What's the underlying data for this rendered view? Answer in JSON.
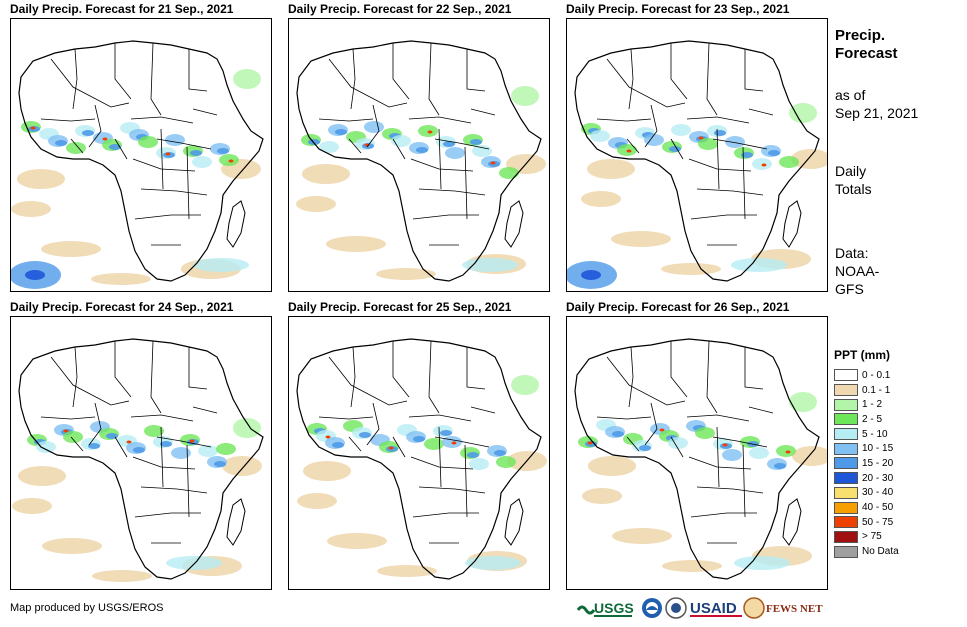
{
  "panels": [
    {
      "title": "Daily Precip. Forecast for 21 Sep., 2021"
    },
    {
      "title": "Daily Precip. Forecast for 22 Sep., 2021"
    },
    {
      "title": "Daily Precip. Forecast for 23 Sep., 2021"
    },
    {
      "title": "Daily Precip. Forecast for 24 Sep., 2021"
    },
    {
      "title": "Daily Precip. Forecast for 25 Sep., 2021"
    },
    {
      "title": "Daily Precip. Forecast for 26 Sep., 2021"
    }
  ],
  "side": {
    "title_line1": "Precip.",
    "title_line2": "Forecast",
    "asof_line1": "as of",
    "asof_line2": "Sep 21, 2021",
    "totals_line1": "Daily",
    "totals_line2": "Totals",
    "data_line1": "Data:",
    "data_line2": "NOAA-",
    "data_line3": "GFS"
  },
  "legend": {
    "title": "PPT (mm)",
    "items": [
      {
        "label": "0 - 0.1",
        "color": "#ffffff"
      },
      {
        "label": "0.1 - 1",
        "color": "#f0d8b0"
      },
      {
        "label": "1 - 2",
        "color": "#b2f5a8"
      },
      {
        "label": "2 - 5",
        "color": "#6ee65a"
      },
      {
        "label": "5 - 10",
        "color": "#b6ecf3"
      },
      {
        "label": "10 - 15",
        "color": "#80c0f2"
      },
      {
        "label": "15 - 20",
        "color": "#4f9ae8"
      },
      {
        "label": "20 - 30",
        "color": "#1e56d8"
      },
      {
        "label": "30 - 40",
        "color": "#f8e070"
      },
      {
        "label": "40 - 50",
        "color": "#f5a000"
      },
      {
        "label": "50 - 75",
        "color": "#ee4000"
      },
      {
        "label": "> 75",
        "color": "#a01010"
      },
      {
        "label": "No Data",
        "color": "#a0a0a0"
      }
    ]
  },
  "credit": "Map produced by USGS/EROS",
  "logos": {
    "usgs": "USGS",
    "usaid": "USAID",
    "fews": "FEWS NET"
  }
}
